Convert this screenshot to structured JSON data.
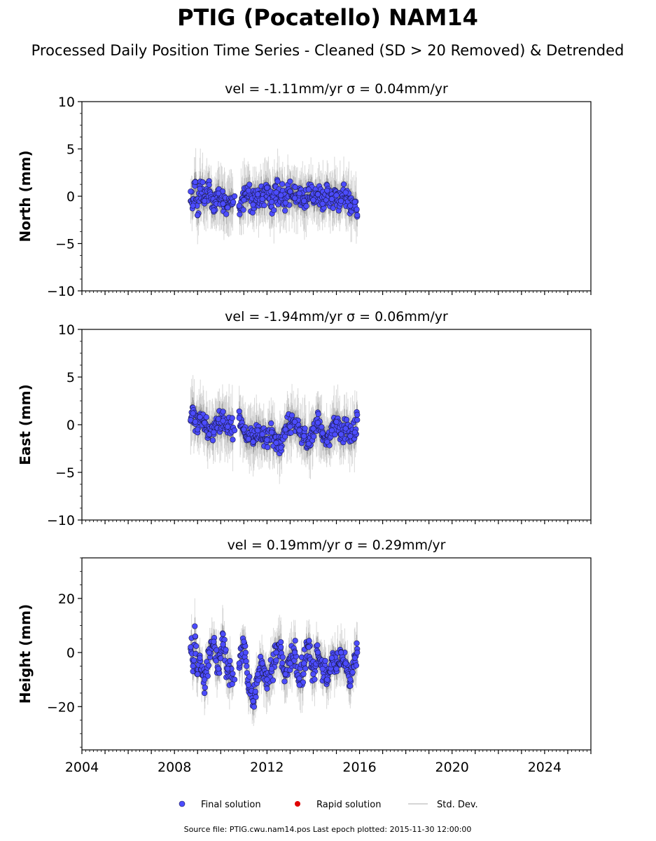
{
  "title": "PTIG (Pocatello) NAM14",
  "subtitle": "Processed Daily Position Time Series - Cleaned (SD > 20 Removed) & Detrended",
  "source_note": "Source file: PTIG.cwu.nam14.pos  Last epoch plotted: 2015-11-30 12:00:00",
  "legend": {
    "final": "Final solution",
    "rapid": "Rapid solution",
    "std": "Std. Dev."
  },
  "colors": {
    "final": "#4c4cff",
    "rapid": "#e00000",
    "std": "#c8c8c8"
  },
  "chart_data": [
    {
      "type": "scatter",
      "ylabel": "North (mm)",
      "title_vel": "vel = -1.11mm/yr",
      "title_sigma": "σ = 0.04mm/yr",
      "xlim": [
        2004,
        2026
      ],
      "ylim": [
        -10,
        10
      ],
      "yticks": [
        10,
        5,
        0,
        -5,
        -10
      ],
      "xticks": [],
      "series": [
        {
          "name": "Final solution",
          "x": [
            2008.7,
            2008.8,
            2008.9,
            2009.0,
            2009.1,
            2009.3,
            2009.5,
            2009.7,
            2009.9,
            2010.1,
            2010.3,
            2010.6,
            2010.8,
            2011.0,
            2011.2,
            2011.4,
            2011.6,
            2011.8,
            2012.0,
            2012.2,
            2012.4,
            2012.6,
            2012.8,
            2013.0,
            2013.2,
            2013.4,
            2013.6,
            2013.8,
            2014.0,
            2014.2,
            2014.4,
            2014.6,
            2014.8,
            2015.0,
            2015.2,
            2015.4,
            2015.6,
            2015.8,
            2015.9
          ],
          "y": [
            0.5,
            -1.0,
            1.5,
            -2.0,
            0.8,
            -0.5,
            1.2,
            -1.5,
            0.3,
            -0.8,
            -1.2,
            0.0,
            -1.0,
            -0.4,
            0.6,
            -0.9,
            0.2,
            -0.3,
            0.9,
            -0.6,
            0.4,
            0.1,
            -0.7,
            0.5,
            -0.2,
            0.3,
            -0.5,
            0.7,
            -0.4,
            0.2,
            -0.8,
            0.6,
            -0.3,
            0.1,
            -0.5,
            0.4,
            -1.0,
            -0.6,
            -2.0
          ]
        }
      ]
    },
    {
      "type": "scatter",
      "ylabel": "East (mm)",
      "title_vel": "vel = -1.94mm/yr",
      "title_sigma": "σ = 0.06mm/yr",
      "xlim": [
        2004,
        2026
      ],
      "ylim": [
        -10,
        10
      ],
      "yticks": [
        10,
        5,
        0,
        -5,
        -10
      ],
      "xticks": [],
      "series": [
        {
          "name": "Final solution",
          "x": [
            2008.7,
            2008.8,
            2008.9,
            2009.0,
            2009.1,
            2009.3,
            2009.5,
            2009.7,
            2009.9,
            2010.1,
            2010.3,
            2010.6,
            2010.8,
            2011.0,
            2011.2,
            2011.4,
            2011.6,
            2011.8,
            2012.0,
            2012.2,
            2012.4,
            2012.6,
            2012.8,
            2013.0,
            2013.2,
            2013.4,
            2013.6,
            2013.8,
            2014.0,
            2014.2,
            2014.4,
            2014.6,
            2014.8,
            2015.0,
            2015.2,
            2015.4,
            2015.6,
            2015.8,
            2015.9
          ],
          "y": [
            0.5,
            1.2,
            0.3,
            -0.5,
            0.8,
            0.2,
            -1.0,
            -0.8,
            0.6,
            0.4,
            -0.2,
            -0.6,
            0.7,
            -0.5,
            -1.5,
            -1.8,
            -0.6,
            -1.0,
            -1.6,
            -0.8,
            -1.9,
            -2.4,
            -0.5,
            -0.2,
            0.3,
            -0.6,
            -1.2,
            -2.0,
            -0.4,
            0.2,
            -0.9,
            -1.8,
            -0.6,
            0.3,
            -1.0,
            -0.4,
            -1.2,
            -0.8,
            0.5
          ]
        }
      ]
    },
    {
      "type": "scatter",
      "ylabel": "Height (mm)",
      "title_vel": "vel = 0.19mm/yr",
      "title_sigma": "σ = 0.29mm/yr",
      "xlim": [
        2004,
        2026
      ],
      "ylim": [
        -36,
        35
      ],
      "yticks": [
        20,
        0,
        -20
      ],
      "xticks": [
        2004,
        2008,
        2012,
        2016,
        2020,
        2024
      ],
      "series": [
        {
          "name": "Final solution",
          "x": [
            2008.7,
            2008.8,
            2008.9,
            2009.0,
            2009.1,
            2009.3,
            2009.5,
            2009.7,
            2009.9,
            2010.1,
            2010.3,
            2010.6,
            2010.8,
            2011.0,
            2011.2,
            2011.4,
            2011.6,
            2011.8,
            2012.0,
            2012.2,
            2012.4,
            2012.6,
            2012.8,
            2013.0,
            2013.2,
            2013.4,
            2013.6,
            2013.8,
            2014.0,
            2014.2,
            2014.4,
            2014.6,
            2014.8,
            2015.0,
            2015.2,
            2015.4,
            2015.6,
            2015.8,
            2015.9
          ],
          "y": [
            2.0,
            -5.0,
            6.0,
            -8.0,
            -2.0,
            -10.0,
            0.0,
            4.0,
            -6.0,
            3.0,
            -6.0,
            -10.0,
            -4.0,
            4.0,
            -12.0,
            -18.0,
            -8.0,
            -4.0,
            -10.0,
            -6.0,
            0.0,
            2.0,
            -8.0,
            -4.0,
            0.0,
            -12.0,
            -4.0,
            2.0,
            -8.0,
            0.0,
            -6.0,
            -10.0,
            -2.0,
            -6.0,
            0.0,
            -4.0,
            -10.0,
            -2.0,
            0.0
          ]
        }
      ]
    }
  ]
}
